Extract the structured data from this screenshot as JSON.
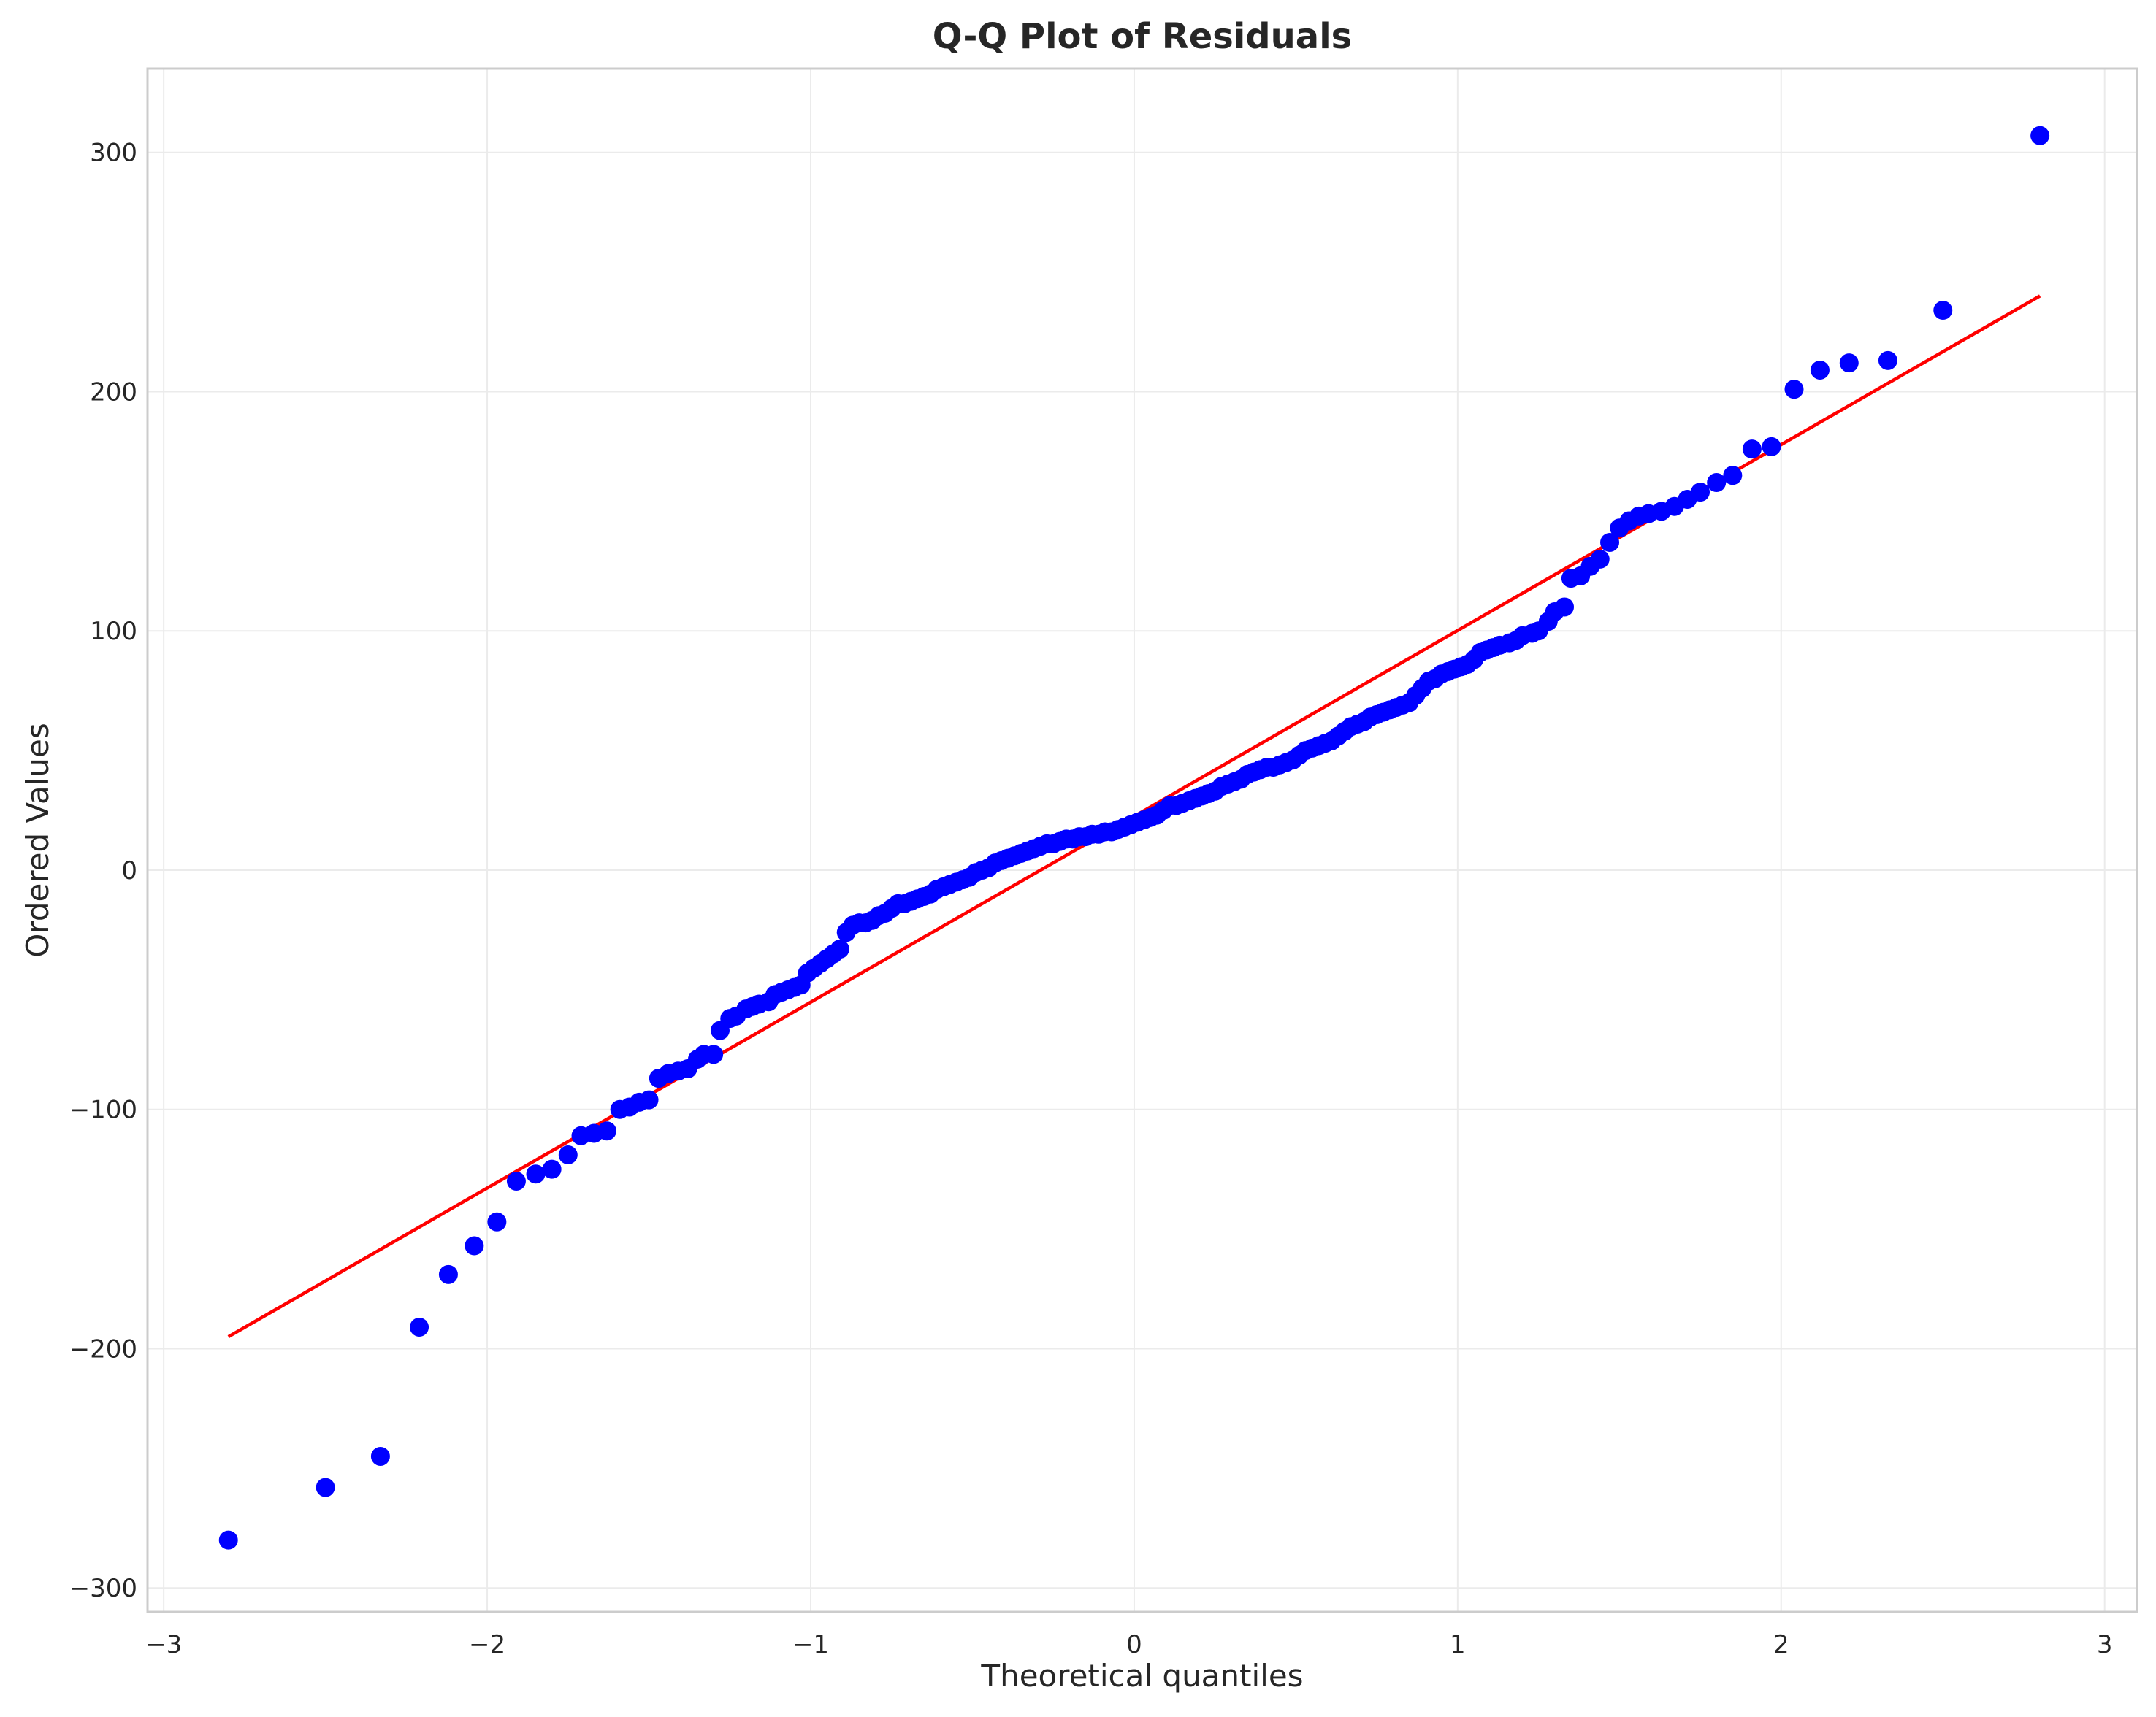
{
  "chart_data": {
    "type": "scatter",
    "title": "Q-Q Plot of Residuals",
    "xlabel": "Theoretical quantiles",
    "ylabel": "Ordered Values",
    "xlim": [
      -3.05,
      3.1
    ],
    "ylim": [
      -310,
      335
    ],
    "xticks": [
      -3,
      -2,
      -1,
      0,
      1,
      2,
      3
    ],
    "xtick_labels": [
      "−3",
      "−2",
      "−1",
      "0",
      "1",
      "2",
      "3"
    ],
    "yticks": [
      -300,
      -200,
      -100,
      0,
      100,
      200,
      300
    ],
    "ytick_labels": [
      "−300",
      "−200",
      "−100",
      "0",
      "100",
      "200",
      "300"
    ],
    "grid": true,
    "point_color": "#0000ff",
    "line_color": "#ff0000",
    "fit_line": {
      "x": [
        -2.8,
        2.8
      ],
      "y": [
        -195,
        240
      ]
    },
    "points": [
      [
        -2.8,
        -280
      ],
      [
        -2.5,
        -258
      ],
      [
        -2.33,
        -245
      ],
      [
        -2.21,
        -191
      ],
      [
        -2.12,
        -169
      ],
      [
        -2.04,
        -157
      ],
      [
        -1.97,
        -147
      ],
      [
        -1.91,
        -130
      ],
      [
        -1.85,
        -127
      ],
      [
        -1.8,
        -125
      ],
      [
        -1.75,
        -119
      ],
      [
        -1.71,
        -111
      ],
      [
        -1.67,
        -110
      ],
      [
        -1.63,
        -109
      ],
      [
        -1.59,
        -100
      ],
      [
        -1.56,
        -99
      ],
      [
        -1.53,
        -97
      ],
      [
        -1.5,
        -96
      ],
      [
        -1.47,
        -87
      ],
      [
        -1.44,
        -85
      ],
      [
        -1.41,
        -84
      ],
      [
        -1.38,
        -83
      ],
      [
        -1.35,
        -79
      ],
      [
        -1.33,
        -77
      ],
      [
        -1.3,
        -77
      ],
      [
        -1.28,
        -67
      ],
      [
        -1.25,
        -62
      ],
      [
        -1.23,
        -61
      ],
      [
        -1.2,
        -58
      ],
      [
        -1.18,
        -57
      ],
      [
        -1.16,
        -56
      ],
      [
        -1.13,
        -55
      ],
      [
        -1.11,
        -52
      ],
      [
        -1.09,
        -51
      ],
      [
        -1.07,
        -50
      ],
      [
        -1.05,
        -49
      ],
      [
        -1.03,
        -48
      ],
      [
        -1.01,
        -43
      ],
      [
        -0.99,
        -41
      ],
      [
        -0.97,
        -39
      ],
      [
        -0.95,
        -37
      ],
      [
        -0.93,
        -35
      ],
      [
        -0.91,
        -33
      ],
      [
        -0.89,
        -26
      ],
      [
        -0.87,
        -23
      ],
      [
        -0.85,
        -22
      ],
      [
        -0.83,
        -22
      ],
      [
        -0.81,
        -21
      ],
      [
        -0.79,
        -19
      ],
      [
        -0.77,
        -18
      ],
      [
        -0.75,
        -16
      ],
      [
        -0.73,
        -14
      ],
      [
        -0.71,
        -14
      ],
      [
        -0.69,
        -13
      ],
      [
        -0.67,
        -12
      ],
      [
        -0.65,
        -11
      ],
      [
        -0.63,
        -10
      ],
      [
        -0.61,
        -8
      ],
      [
        -0.59,
        -7
      ],
      [
        -0.57,
        -6
      ],
      [
        -0.55,
        -5
      ],
      [
        -0.53,
        -4
      ],
      [
        -0.51,
        -3
      ],
      [
        -0.49,
        -1
      ],
      [
        -0.47,
        0
      ],
      [
        -0.45,
        1
      ],
      [
        -0.43,
        3
      ],
      [
        -0.41,
        4
      ],
      [
        -0.39,
        5
      ],
      [
        -0.37,
        6
      ],
      [
        -0.35,
        7
      ],
      [
        -0.33,
        8
      ],
      [
        -0.31,
        9
      ],
      [
        -0.29,
        10
      ],
      [
        -0.27,
        11
      ],
      [
        -0.25,
        11
      ],
      [
        -0.23,
        12
      ],
      [
        -0.21,
        13
      ],
      [
        -0.19,
        13
      ],
      [
        -0.17,
        14
      ],
      [
        -0.15,
        14
      ],
      [
        -0.13,
        15
      ],
      [
        -0.11,
        15
      ],
      [
        -0.09,
        16
      ],
      [
        -0.07,
        16
      ],
      [
        -0.05,
        17
      ],
      [
        -0.03,
        18
      ],
      [
        -0.01,
        19
      ],
      [
        0.01,
        20
      ],
      [
        0.03,
        21
      ],
      [
        0.05,
        22
      ],
      [
        0.07,
        23
      ],
      [
        0.09,
        25
      ],
      [
        0.11,
        27
      ],
      [
        0.13,
        27
      ],
      [
        0.15,
        28
      ],
      [
        0.17,
        29
      ],
      [
        0.19,
        30
      ],
      [
        0.21,
        31
      ],
      [
        0.23,
        32
      ],
      [
        0.25,
        33
      ],
      [
        0.27,
        35
      ],
      [
        0.29,
        36
      ],
      [
        0.31,
        37
      ],
      [
        0.33,
        38
      ],
      [
        0.35,
        40
      ],
      [
        0.37,
        41
      ],
      [
        0.39,
        42
      ],
      [
        0.41,
        43
      ],
      [
        0.43,
        43
      ],
      [
        0.45,
        44
      ],
      [
        0.47,
        45
      ],
      [
        0.49,
        46
      ],
      [
        0.51,
        48
      ],
      [
        0.53,
        50
      ],
      [
        0.55,
        51
      ],
      [
        0.57,
        52
      ],
      [
        0.59,
        53
      ],
      [
        0.61,
        54
      ],
      [
        0.63,
        56
      ],
      [
        0.65,
        58
      ],
      [
        0.67,
        60
      ],
      [
        0.69,
        61
      ],
      [
        0.71,
        62
      ],
      [
        0.73,
        64
      ],
      [
        0.75,
        65
      ],
      [
        0.77,
        66
      ],
      [
        0.79,
        67
      ],
      [
        0.81,
        68
      ],
      [
        0.83,
        69
      ],
      [
        0.85,
        70
      ],
      [
        0.87,
        73
      ],
      [
        0.89,
        76
      ],
      [
        0.91,
        79
      ],
      [
        0.93,
        80
      ],
      [
        0.95,
        82
      ],
      [
        0.97,
        83
      ],
      [
        0.99,
        84
      ],
      [
        1.01,
        85
      ],
      [
        1.03,
        86
      ],
      [
        1.05,
        88
      ],
      [
        1.07,
        91
      ],
      [
        1.09,
        92
      ],
      [
        1.11,
        93
      ],
      [
        1.13,
        94
      ],
      [
        1.16,
        95
      ],
      [
        1.18,
        96
      ],
      [
        1.2,
        98
      ],
      [
        1.23,
        99
      ],
      [
        1.25,
        100
      ],
      [
        1.28,
        104
      ],
      [
        1.3,
        108
      ],
      [
        1.33,
        110
      ],
      [
        1.35,
        122
      ],
      [
        1.38,
        123
      ],
      [
        1.41,
        127
      ],
      [
        1.44,
        130
      ],
      [
        1.47,
        137
      ],
      [
        1.5,
        143
      ],
      [
        1.53,
        146
      ],
      [
        1.56,
        148
      ],
      [
        1.59,
        149
      ],
      [
        1.63,
        150
      ],
      [
        1.67,
        152
      ],
      [
        1.71,
        155
      ],
      [
        1.75,
        158
      ],
      [
        1.8,
        162
      ],
      [
        1.85,
        165
      ],
      [
        1.91,
        176
      ],
      [
        1.97,
        177
      ],
      [
        2.04,
        201
      ],
      [
        2.12,
        209
      ],
      [
        2.21,
        212
      ],
      [
        2.33,
        213
      ],
      [
        2.5,
        234
      ],
      [
        2.8,
        307
      ]
    ]
  }
}
